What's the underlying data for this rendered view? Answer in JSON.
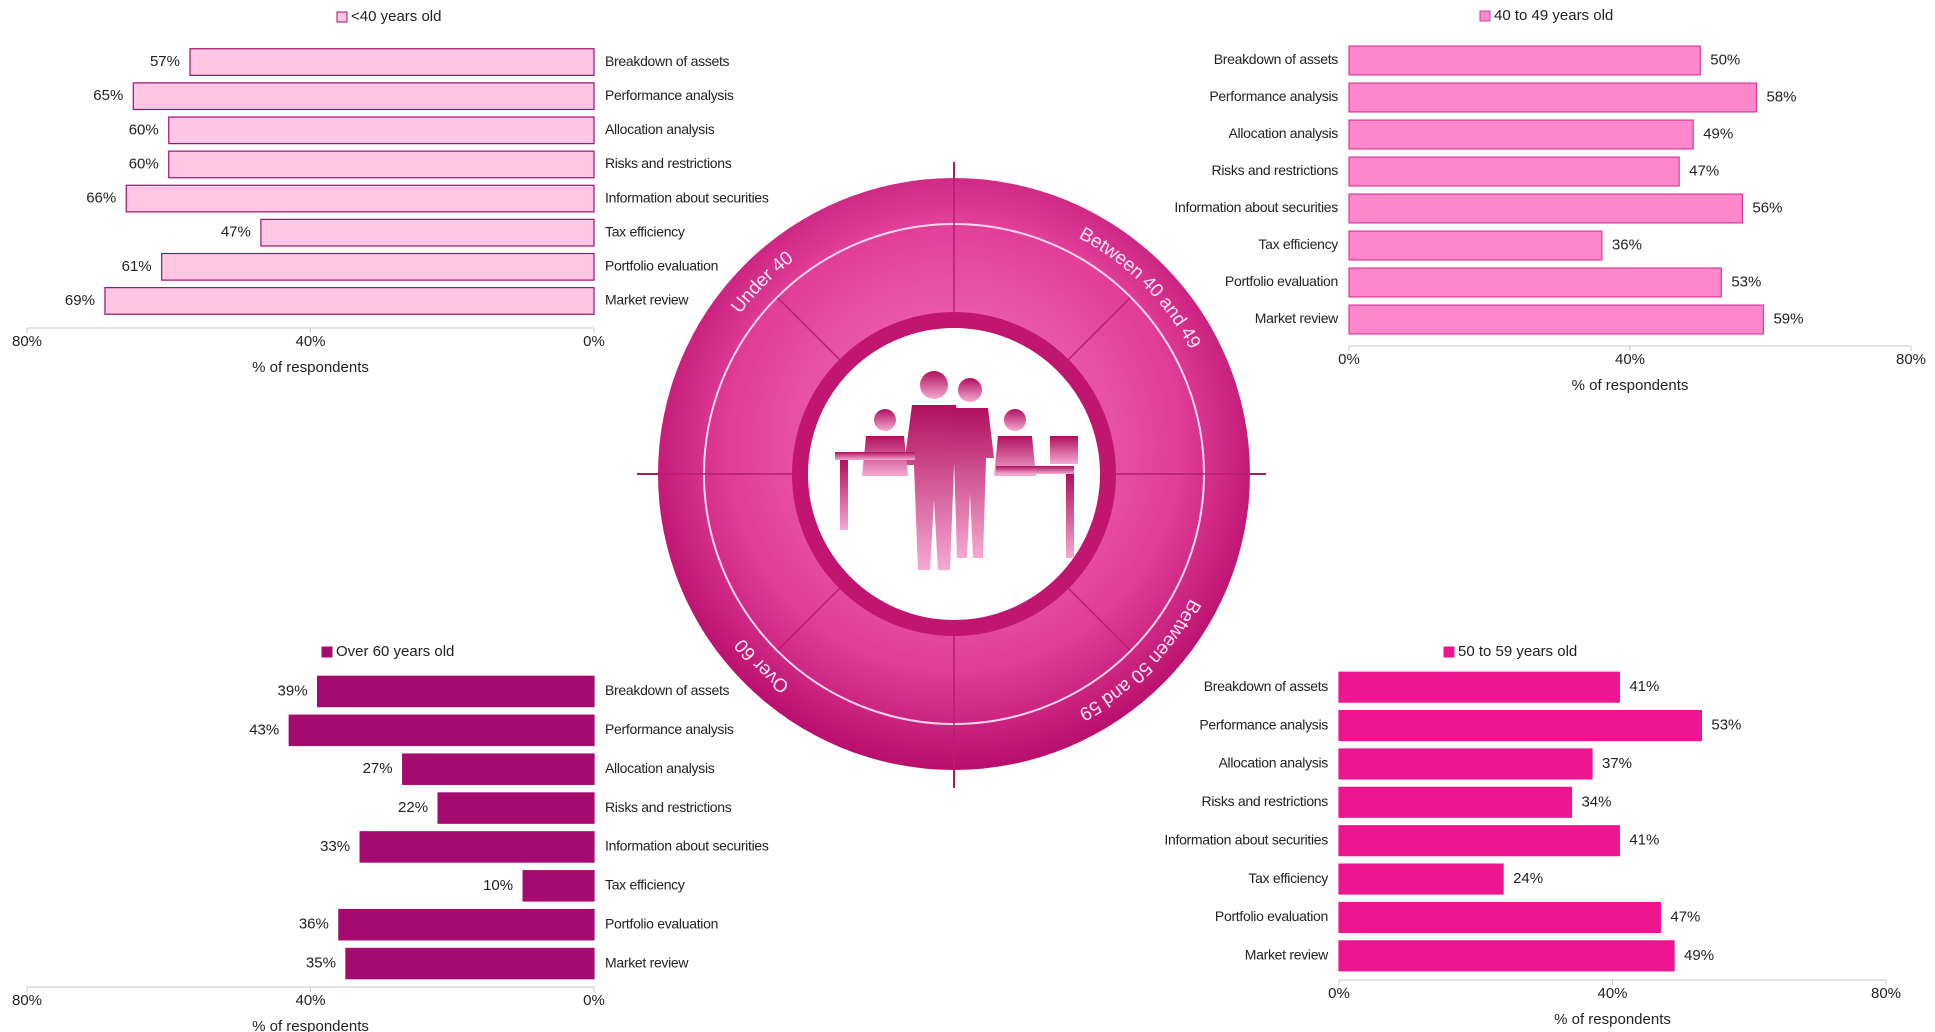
{
  "chart_data": [
    {
      "type": "bar",
      "orientation": "horizontal",
      "x_reversed": true,
      "legend": "<40 years old",
      "color": "#ffc6e6",
      "edge_color": "#a0106a",
      "categories": [
        "Breakdown of assets",
        "Performance analysis",
        "Allocation analysis",
        "Risks and restrictions",
        "Information about securities",
        "Tax efficiency",
        "Portfolio evaluation",
        "Market review"
      ],
      "values": [
        57,
        65,
        60,
        60,
        66,
        47,
        61,
        69
      ],
      "value_labels": [
        "57%",
        "65%",
        "60%",
        "60%",
        "66%",
        "47%",
        "61%",
        "69%"
      ],
      "xlim": [
        0,
        80
      ],
      "xticks": [
        {
          "value": 0,
          "label": "0%"
        },
        {
          "value": 40,
          "label": "40%"
        },
        {
          "value": 80,
          "label": "80%"
        }
      ],
      "xlabel": "% of respondents"
    },
    {
      "type": "bar",
      "orientation": "horizontal",
      "x_reversed": false,
      "legend": "40 to 49 years old",
      "color": "#ff88cc",
      "edge_color": "#d63c97",
      "categories": [
        "Breakdown of assets",
        "Performance analysis",
        "Allocation analysis",
        "Risks and restrictions",
        "Information about securities",
        "Tax efficiency",
        "Portfolio evaluation",
        "Market review"
      ],
      "values": [
        50,
        58,
        49,
        47,
        56,
        36,
        53,
        59
      ],
      "value_labels": [
        "50%",
        "58%",
        "49%",
        "47%",
        "56%",
        "36%",
        "53%",
        "59%"
      ],
      "xlim": [
        0,
        80
      ],
      "xticks": [
        {
          "value": 0,
          "label": "0%"
        },
        {
          "value": 40,
          "label": "40%"
        },
        {
          "value": 80,
          "label": "80%"
        }
      ],
      "xlabel": "% of respondents"
    },
    {
      "type": "bar",
      "orientation": "horizontal",
      "x_reversed": true,
      "legend": "Over 60 years old",
      "color": "#a50a6e",
      "edge_color": "#a50a6e",
      "categories": [
        "Breakdown of assets",
        "Performance analysis",
        "Allocation analysis",
        "Risks and restrictions",
        "Information about securities",
        "Tax efficiency",
        "Portfolio evaluation",
        "Market review"
      ],
      "values": [
        39,
        43,
        27,
        22,
        33,
        10,
        36,
        35
      ],
      "value_labels": [
        "39%",
        "43%",
        "27%",
        "22%",
        "33%",
        "10%",
        "36%",
        "35%"
      ],
      "xlim": [
        0,
        80
      ],
      "xticks": [
        {
          "value": 0,
          "label": "0%"
        },
        {
          "value": 40,
          "label": "40%"
        },
        {
          "value": 80,
          "label": "80%"
        }
      ],
      "xlabel": "% of respondents"
    },
    {
      "type": "bar",
      "orientation": "horizontal",
      "x_reversed": false,
      "legend": "50 to 59 years old",
      "color": "#ee1590",
      "edge_color": "#ee1590",
      "categories": [
        "Breakdown of assets",
        "Performance analysis",
        "Allocation analysis",
        "Risks and restrictions",
        "Information about securities",
        "Tax efficiency",
        "Portfolio evaluation",
        "Market review"
      ],
      "values": [
        41,
        53,
        37,
        34,
        41,
        24,
        47,
        49
      ],
      "value_labels": [
        "41%",
        "53%",
        "37%",
        "34%",
        "41%",
        "24%",
        "47%",
        "49%"
      ],
      "xlim": [
        0,
        80
      ],
      "xticks": [
        {
          "value": 0,
          "label": "0%"
        },
        {
          "value": 40,
          "label": "40%"
        },
        {
          "value": 80,
          "label": "80%"
        }
      ],
      "xlabel": "% of respondents"
    }
  ],
  "center": {
    "labels": [
      "Under 40",
      "Between 40 and 49",
      "Between 50 and 59",
      "Over 60"
    ]
  }
}
